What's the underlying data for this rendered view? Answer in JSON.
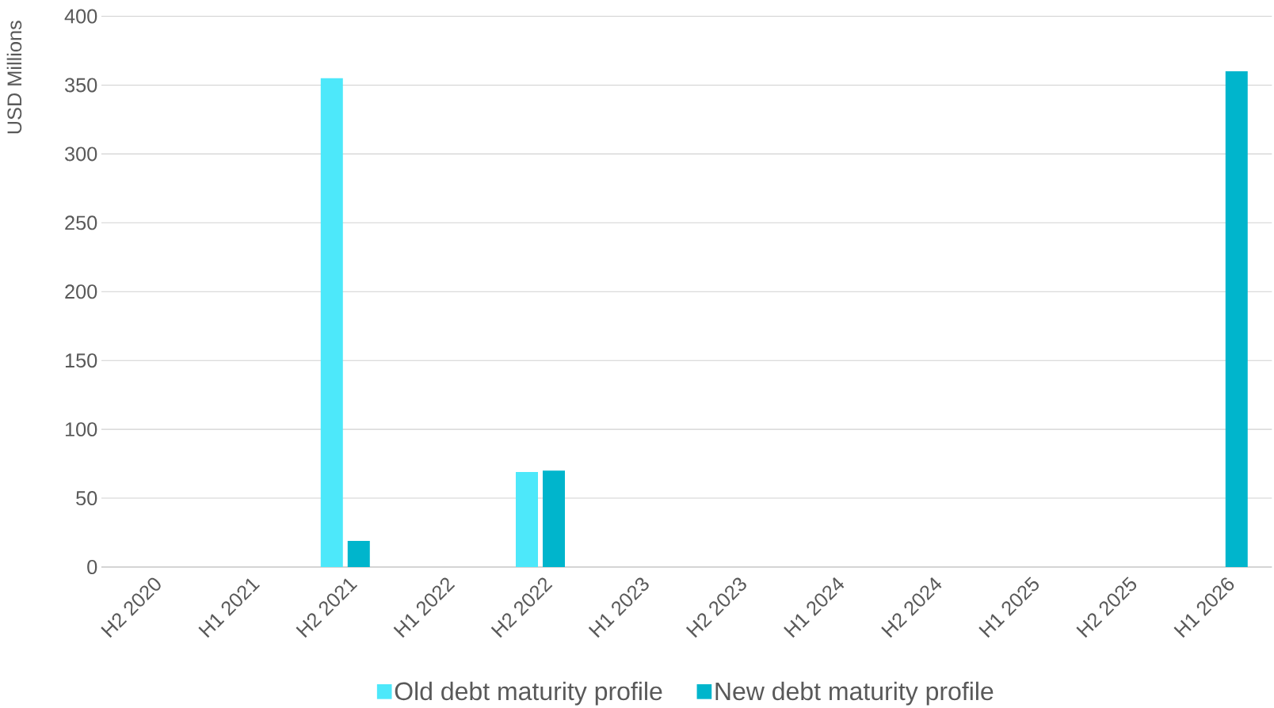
{
  "chart_data": {
    "type": "bar",
    "ylabel": "USD Millions",
    "categories": [
      "H2 2020",
      "H1 2021",
      "H2 2021",
      "H1 2022",
      "H2 2022",
      "H1 2023",
      "H2 2023",
      "H1 2024",
      "H2 2024",
      "H1 2025",
      "H2 2025",
      "H1 2026"
    ],
    "series": [
      {
        "name": "Old debt maturity profile",
        "color": "#4de8fa",
        "values": [
          null,
          null,
          355,
          null,
          69,
          null,
          null,
          null,
          null,
          null,
          null,
          null
        ]
      },
      {
        "name": "New debt maturity profile",
        "color": "#00b5cc",
        "values": [
          null,
          null,
          19,
          null,
          70,
          null,
          null,
          null,
          null,
          null,
          null,
          360
        ]
      }
    ],
    "ylim": [
      0,
      400
    ],
    "yticks": [
      0,
      50,
      100,
      150,
      200,
      250,
      300,
      350,
      400
    ],
    "grid": "y",
    "legend": "bottom"
  }
}
